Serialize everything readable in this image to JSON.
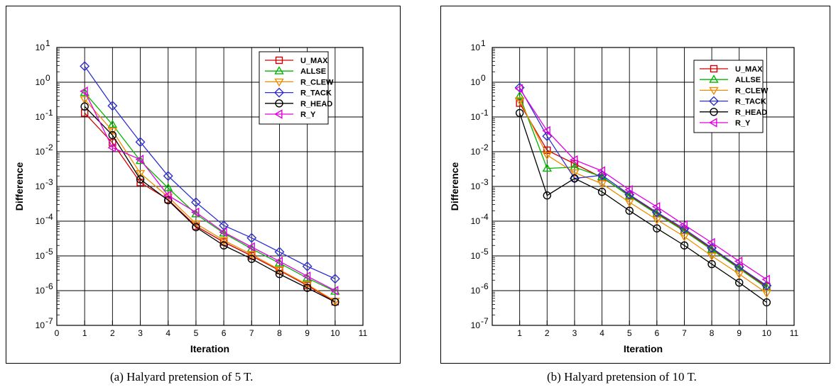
{
  "captions": {
    "a": "(a)  Halyard pretension of 5 T.",
    "b": "(b)  Halyard pretension of 10 T."
  },
  "colors": {
    "U_MAX": "#d00000",
    "ALLSE": "#00b400",
    "R_CLEW": "#f08c00",
    "R_TACK": "#3030d0",
    "R_HEAD": "#000000",
    "R_Y": "#e000e0"
  },
  "chart_data": [
    {
      "type": "line",
      "title": "",
      "xlabel": "Iteration",
      "ylabel": "Difference",
      "xlim": [
        0,
        11
      ],
      "ylim": [
        1e-07,
        10
      ],
      "yscale": "log",
      "grid": true,
      "legend": "top-right",
      "x": [
        1,
        2,
        3,
        4,
        5,
        6,
        7,
        8,
        9,
        10
      ],
      "xticks": [
        "0",
        "1",
        "2",
        "3",
        "4",
        "5",
        "6",
        "7",
        "8",
        "9",
        "10",
        "11"
      ],
      "series": [
        {
          "name": "U_MAX",
          "marker": "square",
          "values": [
            0.13,
            0.018,
            0.0013,
            0.00042,
            7.2e-05,
            2.5e-05,
            1e-05,
            3.8e-06,
            1.4e-06,
            4.8e-07
          ]
        },
        {
          "name": "ALLSE",
          "marker": "triangle-up",
          "values": [
            0.5,
            0.06,
            0.0055,
            0.0009,
            0.00016,
            4.5e-05,
            1.6e-05,
            6.2e-06,
            2.3e-06,
            9.5e-07
          ]
        },
        {
          "name": "R_CLEW",
          "marker": "triangle-down",
          "values": [
            0.32,
            0.04,
            0.0024,
            0.0005,
            8.5e-05,
            2.8e-05,
            1.1e-05,
            4e-06,
            1.5e-06,
            5e-07
          ]
        },
        {
          "name": "R_TACK",
          "marker": "diamond",
          "values": [
            2.9,
            0.21,
            0.019,
            0.002,
            0.00035,
            7.5e-05,
            3.3e-05,
            1.3e-05,
            5e-06,
            2.2e-06
          ]
        },
        {
          "name": "R_HEAD",
          "marker": "circle",
          "values": [
            0.2,
            0.03,
            0.0016,
            0.0004,
            6.7e-05,
            2e-05,
            8.2e-06,
            3e-06,
            1.2e-06,
            4.7e-07
          ]
        },
        {
          "name": "R_Y",
          "marker": "triangle-left",
          "values": [
            0.55,
            0.013,
            0.006,
            0.00055,
            0.00018,
            4.8e-05,
            1.8e-05,
            7e-06,
            2.6e-06,
            1e-06
          ]
        }
      ]
    },
    {
      "type": "line",
      "title": "",
      "xlabel": "Iteration",
      "ylabel": "Difference",
      "xlim": [
        0,
        11
      ],
      "ylim": [
        1e-07,
        10
      ],
      "yscale": "log",
      "grid": true,
      "legend": "top-right",
      "x": [
        1,
        2,
        3,
        4,
        5,
        6,
        7,
        8,
        9,
        10
      ],
      "xticks": [
        "1",
        "2",
        "3",
        "4",
        "5",
        "6",
        "7",
        "8",
        "9",
        "10",
        "11"
      ],
      "series": [
        {
          "name": "U_MAX",
          "marker": "square",
          "values": [
            0.25,
            0.011,
            0.0045,
            0.0018,
            0.00055,
            0.00017,
            5.5e-05,
            1.6e-05,
            4.5e-06,
            1.3e-06
          ]
        },
        {
          "name": "ALLSE",
          "marker": "triangle-up",
          "values": [
            0.4,
            0.0033,
            0.0036,
            0.0019,
            0.00052,
            0.00016,
            5.2e-05,
            1.5e-05,
            4.3e-06,
            1.2e-06
          ]
        },
        {
          "name": "R_CLEW",
          "marker": "triangle-down",
          "values": [
            0.3,
            0.008,
            0.0025,
            0.0012,
            0.00035,
            0.00011,
            3.6e-05,
            1e-05,
            3e-06,
            8.5e-07
          ]
        },
        {
          "name": "R_TACK",
          "marker": "diamond",
          "values": [
            0.7,
            0.028,
            0.0017,
            0.0021,
            0.00058,
            0.00018,
            6e-05,
            1.7e-05,
            4.8e-06,
            1.4e-06
          ]
        },
        {
          "name": "R_HEAD",
          "marker": "circle",
          "values": [
            0.13,
            0.00055,
            0.0017,
            0.0007,
            0.0002,
            6.2e-05,
            2e-05,
            5.8e-06,
            1.7e-06,
            4.6e-07
          ]
        },
        {
          "name": "R_Y",
          "marker": "triangle-left",
          "values": [
            0.65,
            0.04,
            0.0058,
            0.0028,
            0.0008,
            0.00026,
            7.8e-05,
            2.4e-05,
            7e-06,
            2.1e-06
          ]
        }
      ]
    }
  ]
}
